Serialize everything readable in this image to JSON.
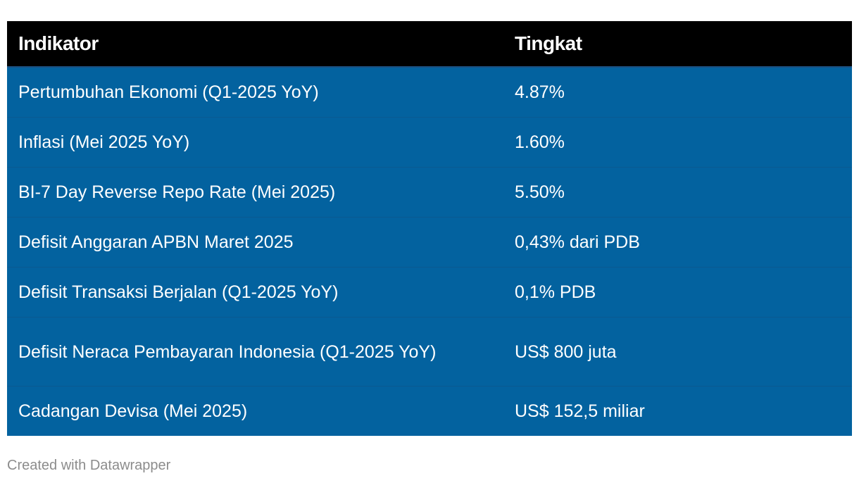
{
  "table": {
    "headers": [
      "Indikator",
      "Tingkat"
    ],
    "rows": [
      {
        "indikator": "Pertumbuhan Ekonomi (Q1-2025 YoY)",
        "tingkat": "4.87%"
      },
      {
        "indikator": "Inflasi (Mei 2025 YoY)",
        "tingkat": "1.60%"
      },
      {
        "indikator": "BI-7 Day Reverse Repo Rate (Mei 2025)",
        "tingkat": "5.50%"
      },
      {
        "indikator": "Defisit Anggaran APBN Maret 2025",
        "tingkat": "0,43% dari PDB"
      },
      {
        "indikator": "Defisit Transaksi Berjalan (Q1-2025 YoY)",
        "tingkat": "0,1% PDB"
      },
      {
        "indikator": "Defisit Neraca Pembayaran Indonesia (Q1-2025 YoY)",
        "tingkat": "US$ 800 juta"
      },
      {
        "indikator": "Cadangan Devisa (Mei 2025)",
        "tingkat": "US$ 152,5 miliar"
      }
    ]
  },
  "footer": {
    "credit": "Created with Datawrapper"
  },
  "colors": {
    "header_bg": "#000000",
    "row_bg": "#03629f",
    "text": "#ffffff",
    "credit_text": "#8c8c8c"
  }
}
